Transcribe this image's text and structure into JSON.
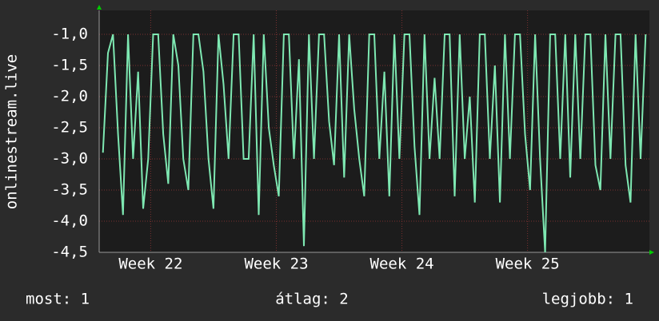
{
  "chart_data": {
    "type": "line",
    "y_label": "onlinestream.live",
    "x": [
      21.62,
      21.66,
      21.7,
      21.74,
      21.78,
      21.82,
      21.86,
      21.9,
      21.94,
      21.98,
      22.02,
      22.06,
      22.1,
      22.14,
      22.18,
      22.22,
      22.26,
      22.3,
      22.34,
      22.38,
      22.42,
      22.46,
      22.5,
      22.54,
      22.58,
      22.62,
      22.66,
      22.7,
      22.74,
      22.78,
      22.82,
      22.86,
      22.9,
      22.94,
      22.98,
      23.02,
      23.06,
      23.1,
      23.14,
      23.18,
      23.22,
      23.26,
      23.3,
      23.34,
      23.38,
      23.42,
      23.46,
      23.5,
      23.54,
      23.58,
      23.62,
      23.66,
      23.7,
      23.74,
      23.78,
      23.82,
      23.86,
      23.9,
      23.94,
      23.98,
      24.02,
      24.06,
      24.1,
      24.14,
      24.18,
      24.22,
      24.26,
      24.3,
      24.34,
      24.38,
      24.42,
      24.46,
      24.5,
      24.54,
      24.58,
      24.62,
      24.66,
      24.7,
      24.74,
      24.78,
      24.82,
      24.86,
      24.9,
      24.94,
      24.98,
      25.02,
      25.06,
      25.1,
      25.14,
      25.18,
      25.22,
      25.26,
      25.3,
      25.34,
      25.38,
      25.42,
      25.46,
      25.5,
      25.54,
      25.58,
      25.62,
      25.66,
      25.7,
      25.74,
      25.78,
      25.82,
      25.86,
      25.9,
      25.94
    ],
    "series": [
      {
        "color": "#7ee8b2",
        "values": [
          -2.9,
          -1.3,
          -1.0,
          -2.6,
          -3.9,
          -1.0,
          -3.0,
          -1.6,
          -3.8,
          -3.0,
          -1.0,
          -1.0,
          -2.6,
          -3.4,
          -1.0,
          -1.5,
          -3.0,
          -3.5,
          -1.0,
          -1.0,
          -1.6,
          -3.0,
          -3.8,
          -1.0,
          -1.8,
          -3.0,
          -1.0,
          -1.0,
          -3.0,
          -3.0,
          -1.0,
          -3.9,
          -1.0,
          -2.5,
          -3.1,
          -3.6,
          -1.0,
          -1.0,
          -3.0,
          -1.4,
          -4.4,
          -1.0,
          -3.0,
          -1.0,
          -1.0,
          -2.4,
          -3.1,
          -1.0,
          -3.3,
          -1.0,
          -2.2,
          -3.0,
          -3.6,
          -1.0,
          -1.0,
          -3.0,
          -1.6,
          -3.6,
          -1.0,
          -3.0,
          -1.0,
          -1.0,
          -2.8,
          -3.9,
          -1.0,
          -3.0,
          -1.7,
          -3.0,
          -1.0,
          -1.0,
          -3.6,
          -1.0,
          -3.0,
          -2.0,
          -3.7,
          -1.0,
          -1.0,
          -3.0,
          -1.5,
          -3.7,
          -1.0,
          -3.0,
          -1.0,
          -1.0,
          -2.6,
          -3.5,
          -1.0,
          -3.0,
          -4.5,
          -1.0,
          -1.0,
          -3.0,
          -1.0,
          -3.3,
          -1.0,
          -3.0,
          -1.0,
          -1.0,
          -3.1,
          -3.5,
          -1.0,
          -3.0,
          -1.0,
          -1.0,
          -3.1,
          -3.7,
          -1.0,
          -3.0,
          -1.0
        ]
      }
    ],
    "xlim": [
      21.59,
      25.97
    ],
    "xticks": [
      {
        "value": 22,
        "label": "Week 22"
      },
      {
        "value": 23,
        "label": "Week 23"
      },
      {
        "value": 24,
        "label": "Week 24"
      },
      {
        "value": 25,
        "label": "Week 25"
      }
    ],
    "ylim": [
      -4.5,
      -0.615
    ],
    "yticks": [
      {
        "value": -1.0,
        "label": "-1,0"
      },
      {
        "value": -1.5,
        "label": "-1,5"
      },
      {
        "value": -2.0,
        "label": "-2,0"
      },
      {
        "value": -2.5,
        "label": "-2,5"
      },
      {
        "value": -3.0,
        "label": "-3,0"
      },
      {
        "value": -3.5,
        "label": "-3,5"
      },
      {
        "value": -4.0,
        "label": "-4,0"
      },
      {
        "value": -4.5,
        "label": "-4,5"
      }
    ],
    "grid": true,
    "footer": [
      "most: 1",
      "átlag: 2",
      "legjobb: 1"
    ]
  }
}
